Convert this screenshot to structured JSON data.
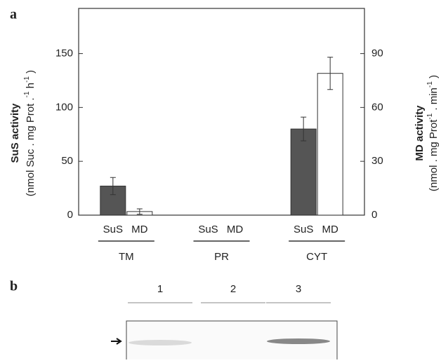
{
  "chart_data": {
    "type": "bar",
    "panel_label": "a",
    "categories": [
      "TM",
      "PR",
      "CYT"
    ],
    "y_label": "SuS activity",
    "y_unit": [
      {
        "text": "(nmol  Suc .  mg Prot ."
      },
      {
        "sup": "-1"
      },
      {
        "text": "  h"
      },
      {
        "sup": "-1"
      },
      {
        "text": " )"
      }
    ],
    "y2_label": "MD activity",
    "y2_unit": [
      {
        "text": "(nmol . mg Prot"
      },
      {
        "sup": "-1"
      },
      {
        "text": " . min"
      },
      {
        "sup": "-1"
      },
      {
        "text": " )"
      }
    ],
    "ylim": [
      0,
      192
    ],
    "yticks": [
      0,
      50,
      100,
      150
    ],
    "y2lim": [
      0,
      115.2
    ],
    "y2ticks": [
      0,
      30,
      60,
      90
    ],
    "series": [
      {
        "name": "SuS",
        "color": "#555555",
        "values": [
          27,
          0,
          80
        ],
        "errors": [
          8,
          0,
          11
        ]
      },
      {
        "name": "MD",
        "color": "#ffffff",
        "axis": "y2",
        "values": [
          2,
          0,
          79
        ],
        "errors": [
          1.5,
          0,
          9
        ]
      }
    ]
  },
  "blot": {
    "label": "b",
    "lanes": [
      "1",
      "2",
      "3"
    ]
  }
}
